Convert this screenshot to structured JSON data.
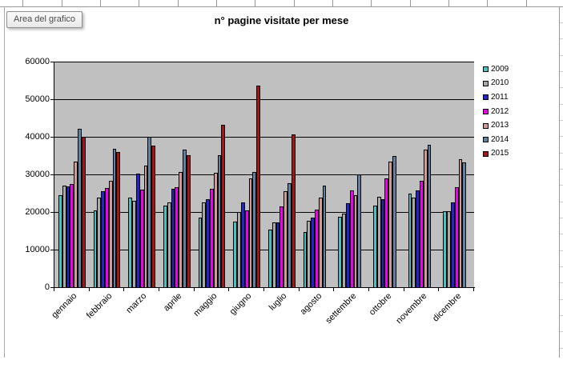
{
  "tooltip": {
    "label": "Area del grafico"
  },
  "chart_data": {
    "type": "bar",
    "title": "n° pagine visitate per mese",
    "categories": [
      "gennaio",
      "febbraio",
      "marzo",
      "aprile",
      "maggio",
      "giugno",
      "luglio",
      "agosto",
      "settembre",
      "ottobre",
      "novembre",
      "dicembre"
    ],
    "series": [
      {
        "name": "2009",
        "color": "#45c2c2",
        "values": [
          24500,
          20400,
          23900,
          21600,
          18500,
          17500,
          15400,
          14700,
          18800,
          21800,
          24800,
          20300
        ]
      },
      {
        "name": "2010",
        "color": "#a9a9a9",
        "values": [
          27000,
          23900,
          23000,
          22500,
          22500,
          20000,
          17300,
          17700,
          19600,
          24100,
          23900,
          20300
        ]
      },
      {
        "name": "2011",
        "color": "#2222ce",
        "values": [
          26800,
          25600,
          30300,
          26200,
          23400,
          22500,
          17200,
          18600,
          22300,
          23500,
          25700,
          22500
        ]
      },
      {
        "name": "2012",
        "color": "#f000f0",
        "values": [
          27400,
          26300,
          25900,
          26500,
          26200,
          20500,
          21500,
          20700,
          25700,
          29000,
          28300,
          26600
        ]
      },
      {
        "name": "2013",
        "color": "#d49a98",
        "values": [
          33500,
          28400,
          32400,
          30600,
          30500,
          29000,
          25500,
          23900,
          24400,
          33500,
          36500,
          34000
        ]
      },
      {
        "name": "2014",
        "color": "#5f81a3",
        "values": [
          42100,
          36800,
          40000,
          36700,
          35200,
          30600,
          27700,
          27100,
          30000,
          34800,
          37800,
          33200
        ]
      },
      {
        "name": "2015",
        "color": "#a81414",
        "values": [
          40000,
          35900,
          37600,
          35000,
          43200,
          53700,
          40700,
          0,
          0,
          0,
          0,
          0
        ]
      }
    ],
    "ylim": [
      0,
      60000
    ],
    "ytick_step": 10000,
    "ytick_labels": [
      "0",
      "10000",
      "20000",
      "30000",
      "40000",
      "50000",
      "60000"
    ],
    "grid": true,
    "legend_position": "right",
    "plot_bg": "#c0c0c0",
    "bar_border": "#000000"
  }
}
